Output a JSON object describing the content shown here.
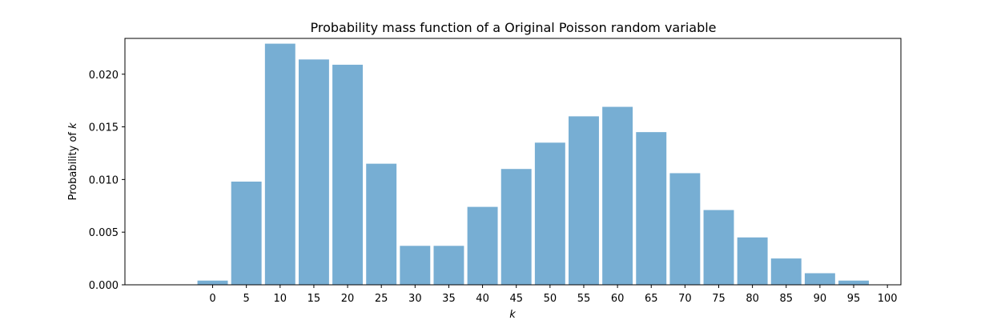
{
  "chart_data": {
    "type": "bar",
    "title": "Probability mass function of a Original Poisson random variable",
    "xlabel": "k",
    "ylabel_prefix": "Probability of ",
    "ylabel_var": "k",
    "bar_color": "#77aed3",
    "bar_width": 4.5,
    "xlim": [
      -13,
      102
    ],
    "ylim": [
      0,
      0.0234
    ],
    "x": [
      0,
      5,
      10,
      15,
      20,
      25,
      30,
      35,
      40,
      45,
      50,
      55,
      60,
      65,
      70,
      75,
      80,
      85,
      90,
      95
    ],
    "values": [
      0.0004,
      0.0098,
      0.0229,
      0.0214,
      0.0209,
      0.0115,
      0.0037,
      0.0037,
      0.0074,
      0.011,
      0.0135,
      0.016,
      0.0169,
      0.0145,
      0.0106,
      0.0071,
      0.0045,
      0.0025,
      0.0011,
      0.0004
    ],
    "xticks": [
      "0",
      "5",
      "10",
      "15",
      "20",
      "25",
      "30",
      "35",
      "40",
      "45",
      "50",
      "55",
      "60",
      "65",
      "70",
      "75",
      "80",
      "85",
      "90",
      "95",
      "100"
    ],
    "yticks": [
      "0.000",
      "0.005",
      "0.010",
      "0.015",
      "0.020"
    ],
    "grid": false
  }
}
